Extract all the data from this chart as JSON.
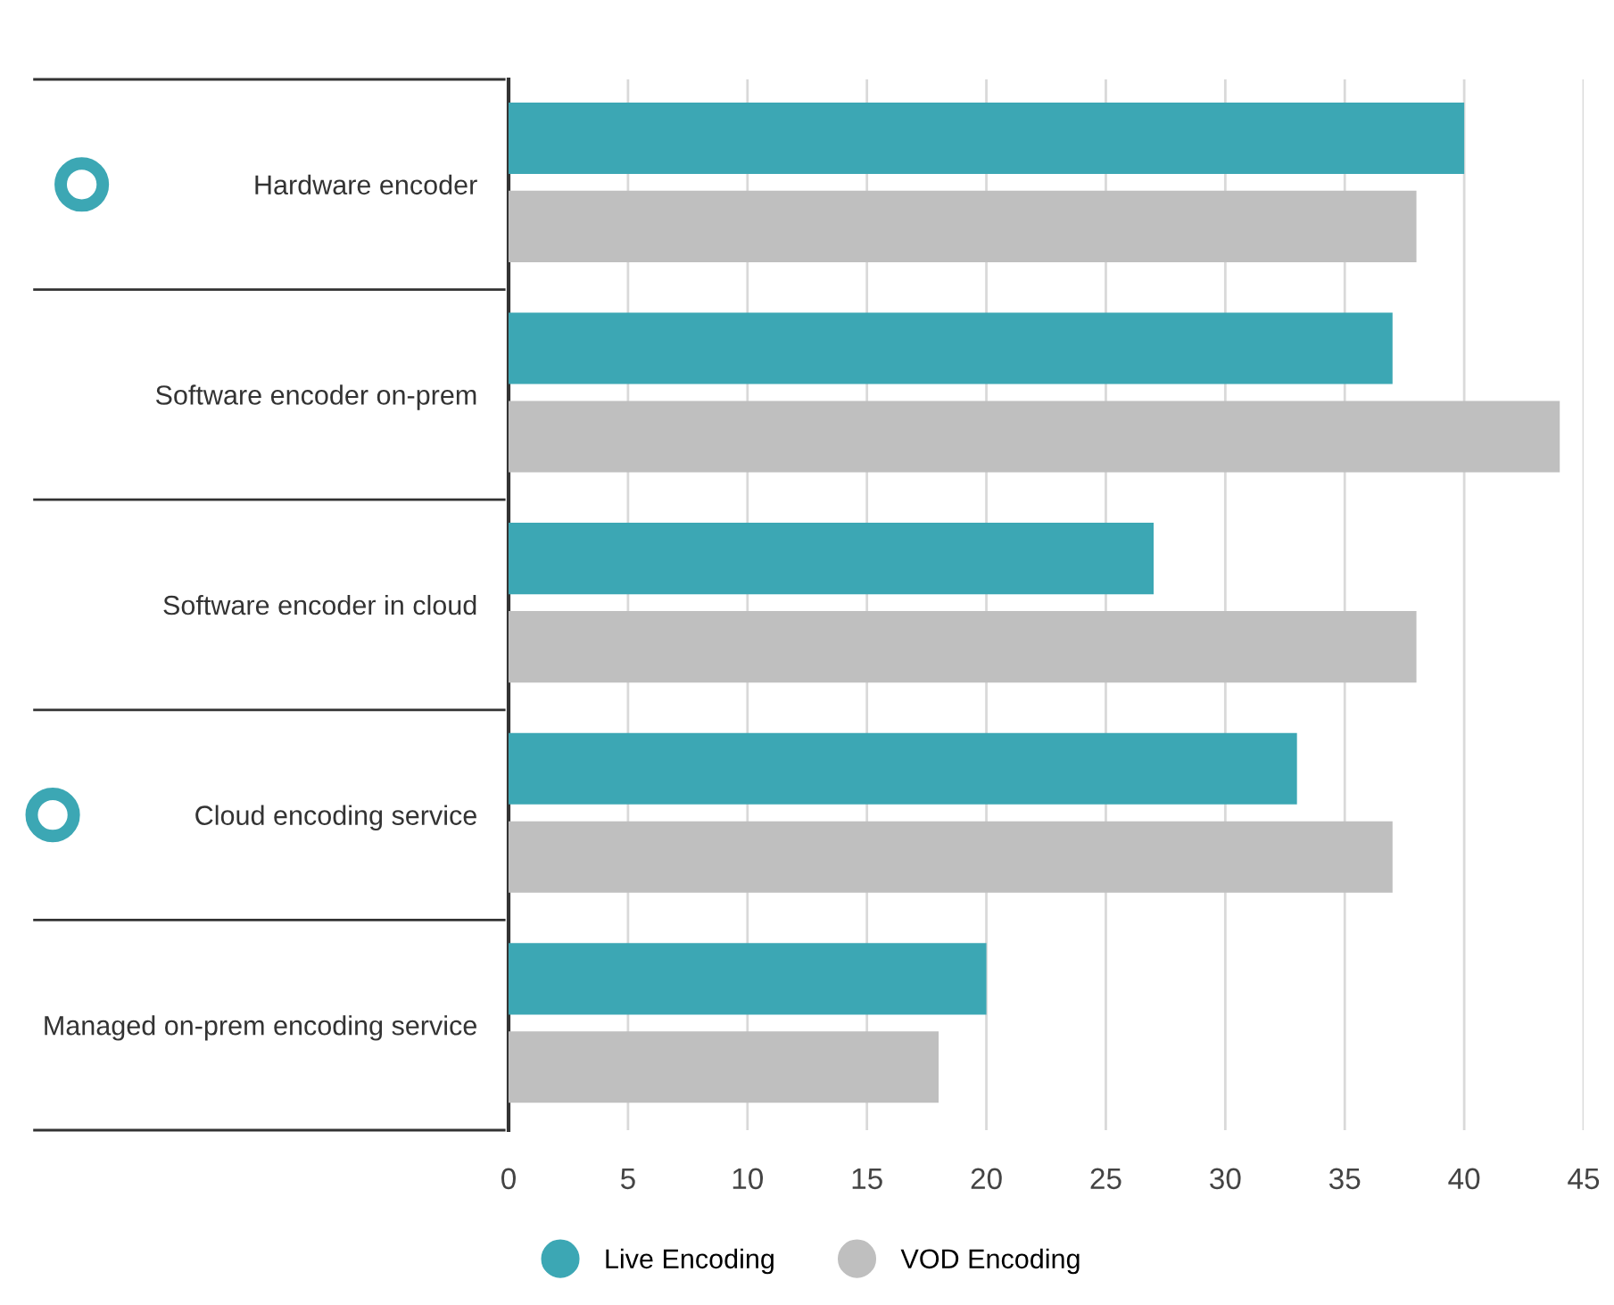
{
  "chart_data": {
    "type": "bar",
    "orientation": "horizontal",
    "categories": [
      "Hardware encoder",
      "Software encoder on-prem",
      "Software encoder in cloud",
      "Cloud encoding service",
      "Managed on-prem encoding service"
    ],
    "series": [
      {
        "name": "Live Encoding",
        "color": "#3ca7b4",
        "values": [
          40,
          37,
          27,
          33,
          20
        ]
      },
      {
        "name": "VOD Encoding",
        "color": "#bfbfbf",
        "values": [
          38,
          44,
          38,
          37,
          18
        ]
      }
    ],
    "xlim": [
      0,
      45
    ],
    "xticks": [
      0,
      5,
      10,
      15,
      20,
      25,
      30,
      35,
      40,
      45
    ],
    "grid": "x",
    "legend": "bottom"
  }
}
